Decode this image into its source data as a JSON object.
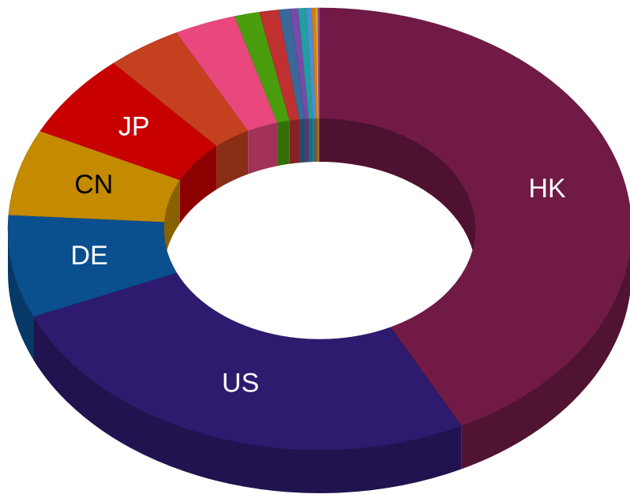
{
  "chart_data": {
    "type": "donut3d",
    "categories": [
      "HK",
      "US",
      "DE",
      "CN",
      "JP",
      null,
      null,
      null,
      null,
      null,
      null,
      null,
      null,
      null,
      null,
      null
    ],
    "values": [
      42.5,
      26,
      7.5,
      6.3,
      6.2,
      3.9,
      3.2,
      1.3,
      1,
      0.6,
      0.4,
      0.4,
      0.3,
      0.2,
      0.1,
      0.1
    ],
    "colors": [
      "#701a45",
      "#2e1a6e",
      "#0a4f8e",
      "#c48a00",
      "#c80000",
      "#c4401e",
      "#e8487e",
      "#4a9e0e",
      "#c03030",
      "#3a6898",
      "#7a4aa8",
      "#20a0a0",
      "#4a90d0",
      "#e07a10",
      "#d0c020",
      "#a040a0"
    ]
  }
}
